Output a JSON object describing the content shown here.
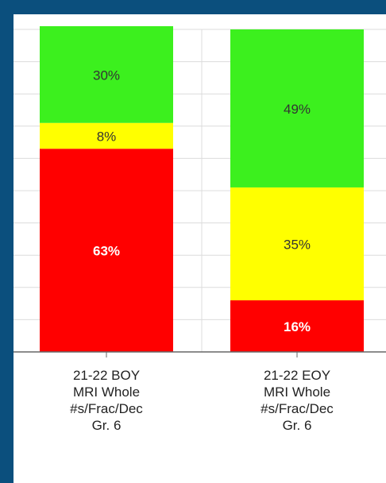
{
  "chart_data": {
    "type": "stacked_bar",
    "categories": [
      "21-22 BOY\nMRI Whole\n#s/Frac/Dec\nGr. 6",
      "21-22 EOY\nMRI Whole\n#s/Frac/Dec\nGr. 6"
    ],
    "series": [
      {
        "color": "#ff0000",
        "values": [
          63,
          16
        ],
        "value_labels": [
          "63%",
          "16%"
        ]
      },
      {
        "color": "#ffff00",
        "values": [
          8,
          35
        ],
        "value_labels": [
          "8%",
          "35%"
        ]
      },
      {
        "color": "#3cf01e",
        "values": [
          30,
          49
        ],
        "value_labels": [
          "30%",
          "49%"
        ]
      }
    ],
    "ylim": [
      0,
      100
    ],
    "yticks": [
      0,
      10,
      20,
      30,
      40,
      50,
      60,
      70,
      80,
      90,
      100
    ],
    "grid": true
  }
}
